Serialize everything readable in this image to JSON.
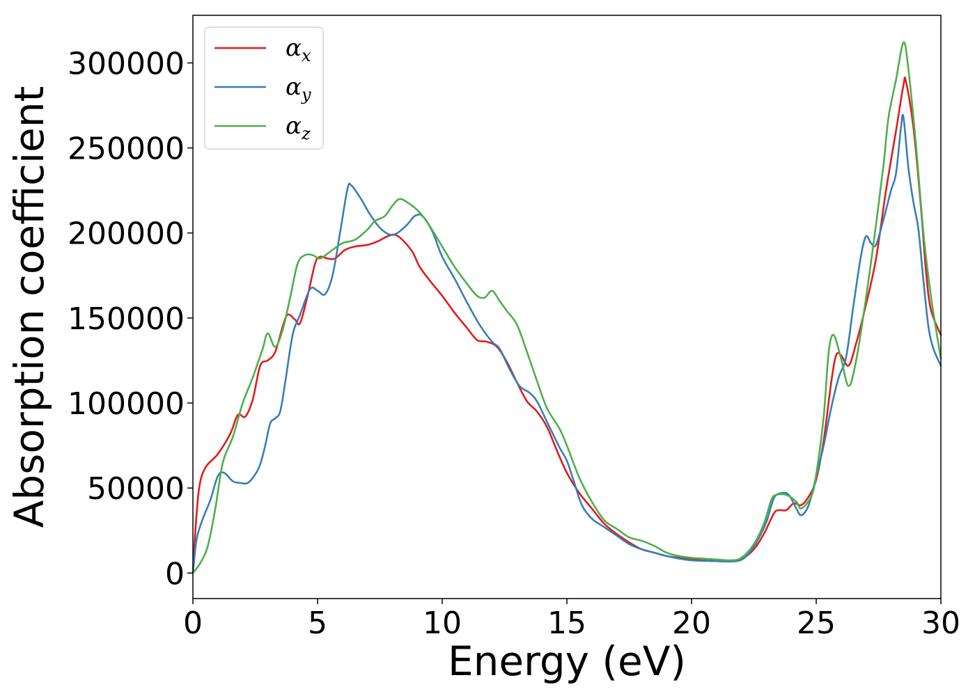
{
  "chart_data": {
    "type": "line",
    "title": "",
    "xlabel": "Energy (eV)",
    "ylabel": "Absorption coefficient",
    "xlim": [
      0,
      30
    ],
    "ylim": [
      -15000,
      328000
    ],
    "xticks": [
      0,
      5,
      10,
      15,
      20,
      25,
      30
    ],
    "yticks": [
      0,
      50000,
      100000,
      150000,
      200000,
      250000,
      300000
    ],
    "grid": false,
    "legend_position": "top-left",
    "series": [
      {
        "name": "α_x",
        "symbol": "α",
        "subscript": "x",
        "color": "#e41a1c",
        "points": [
          [
            0,
            0
          ],
          [
            0.1,
            25000
          ],
          [
            0.25,
            50000
          ],
          [
            0.5,
            62000
          ],
          [
            1.0,
            70000
          ],
          [
            1.5,
            82000
          ],
          [
            1.8,
            93000
          ],
          [
            2.1,
            92000
          ],
          [
            2.4,
            102000
          ],
          [
            2.7,
            122000
          ],
          [
            3.0,
            125000
          ],
          [
            3.3,
            130000
          ],
          [
            3.6,
            145000
          ],
          [
            3.8,
            152000
          ],
          [
            4.1,
            149000
          ],
          [
            4.3,
            147000
          ],
          [
            4.6,
            163000
          ],
          [
            4.9,
            182000
          ],
          [
            5.1,
            186000
          ],
          [
            5.4,
            185000
          ],
          [
            5.7,
            185000
          ],
          [
            6.1,
            190000
          ],
          [
            6.5,
            192000
          ],
          [
            7.0,
            193000
          ],
          [
            7.4,
            195000
          ],
          [
            7.8,
            198000
          ],
          [
            8.1,
            199000
          ],
          [
            8.4,
            196000
          ],
          [
            8.8,
            189000
          ],
          [
            9.1,
            180000
          ],
          [
            9.5,
            172000
          ],
          [
            10.0,
            163000
          ],
          [
            10.5,
            153000
          ],
          [
            11.0,
            144000
          ],
          [
            11.4,
            137000
          ],
          [
            11.8,
            136000
          ],
          [
            12.2,
            133000
          ],
          [
            12.6,
            124000
          ],
          [
            13.0,
            112000
          ],
          [
            13.4,
            101000
          ],
          [
            13.8,
            95000
          ],
          [
            14.2,
            86000
          ],
          [
            14.6,
            72000
          ],
          [
            15.0,
            59000
          ],
          [
            15.5,
            47000
          ],
          [
            16.0,
            38000
          ],
          [
            16.5,
            29000
          ],
          [
            17.0,
            23000
          ],
          [
            17.5,
            18000
          ],
          [
            18.0,
            14000
          ],
          [
            18.5,
            12000
          ],
          [
            19.0,
            10000
          ],
          [
            19.5,
            9000
          ],
          [
            20.0,
            8000
          ],
          [
            21.0,
            7000
          ],
          [
            21.6,
            7000
          ],
          [
            22.0,
            8000
          ],
          [
            22.5,
            14000
          ],
          [
            22.9,
            23000
          ],
          [
            23.3,
            35000
          ],
          [
            23.5,
            37000
          ],
          [
            23.8,
            37000
          ],
          [
            24.1,
            41000
          ],
          [
            24.4,
            40000
          ],
          [
            24.7,
            45000
          ],
          [
            25.0,
            55000
          ],
          [
            25.3,
            78000
          ],
          [
            25.6,
            112000
          ],
          [
            25.8,
            128000
          ],
          [
            26.0,
            128000
          ],
          [
            26.3,
            122000
          ],
          [
            26.6,
            135000
          ],
          [
            27.0,
            158000
          ],
          [
            27.4,
            185000
          ],
          [
            27.8,
            225000
          ],
          [
            28.2,
            260000
          ],
          [
            28.5,
            287000
          ],
          [
            28.6,
            289000
          ],
          [
            28.9,
            262000
          ],
          [
            29.2,
            215000
          ],
          [
            29.4,
            178000
          ],
          [
            29.6,
            155000
          ],
          [
            30.0,
            140000
          ]
        ]
      },
      {
        "name": "α_y",
        "symbol": "α",
        "subscript": "y",
        "color": "#377eb8",
        "points": [
          [
            0,
            0
          ],
          [
            0.15,
            20000
          ],
          [
            0.4,
            32000
          ],
          [
            0.7,
            43000
          ],
          [
            1.0,
            57000
          ],
          [
            1.25,
            59000
          ],
          [
            1.6,
            54000
          ],
          [
            1.9,
            53000
          ],
          [
            2.2,
            53000
          ],
          [
            2.5,
            58000
          ],
          [
            2.7,
            64000
          ],
          [
            2.9,
            75000
          ],
          [
            3.1,
            88000
          ],
          [
            3.3,
            91000
          ],
          [
            3.5,
            95000
          ],
          [
            3.7,
            112000
          ],
          [
            4.0,
            140000
          ],
          [
            4.3,
            152000
          ],
          [
            4.7,
            167000
          ],
          [
            5.0,
            166000
          ],
          [
            5.3,
            164000
          ],
          [
            5.6,
            175000
          ],
          [
            5.9,
            200000
          ],
          [
            6.2,
            226000
          ],
          [
            6.35,
            228000
          ],
          [
            6.7,
            221000
          ],
          [
            7.1,
            211000
          ],
          [
            7.5,
            203000
          ],
          [
            7.9,
            199000
          ],
          [
            8.2,
            200000
          ],
          [
            8.6,
            205000
          ],
          [
            8.9,
            210000
          ],
          [
            9.2,
            210000
          ],
          [
            9.6,
            201000
          ],
          [
            10.0,
            186000
          ],
          [
            10.5,
            173000
          ],
          [
            11.0,
            159000
          ],
          [
            11.5,
            146000
          ],
          [
            12.0,
            136000
          ],
          [
            12.3,
            132000
          ],
          [
            12.7,
            120000
          ],
          [
            13.1,
            110000
          ],
          [
            13.5,
            106000
          ],
          [
            13.8,
            101000
          ],
          [
            14.2,
            89000
          ],
          [
            14.7,
            74000
          ],
          [
            15.0,
            66000
          ],
          [
            15.3,
            53000
          ],
          [
            15.6,
            40000
          ],
          [
            16.0,
            32000
          ],
          [
            16.5,
            27000
          ],
          [
            17.0,
            22000
          ],
          [
            17.5,
            17000
          ],
          [
            18.0,
            14000
          ],
          [
            18.5,
            12000
          ],
          [
            19.0,
            10000
          ],
          [
            19.5,
            8500
          ],
          [
            20.0,
            7500
          ],
          [
            21.0,
            7000
          ],
          [
            21.8,
            7000
          ],
          [
            22.2,
            10000
          ],
          [
            22.6,
            18000
          ],
          [
            23.0,
            30000
          ],
          [
            23.3,
            44000
          ],
          [
            23.6,
            47000
          ],
          [
            23.9,
            46000
          ],
          [
            24.2,
            38000
          ],
          [
            24.4,
            34000
          ],
          [
            24.7,
            40000
          ],
          [
            25.0,
            57000
          ],
          [
            25.3,
            75000
          ],
          [
            25.6,
            97000
          ],
          [
            25.9,
            115000
          ],
          [
            26.2,
            127000
          ],
          [
            26.5,
            158000
          ],
          [
            26.8,
            187000
          ],
          [
            27.0,
            198000
          ],
          [
            27.2,
            194000
          ],
          [
            27.4,
            193000
          ],
          [
            27.7,
            208000
          ],
          [
            28.0,
            225000
          ],
          [
            28.2,
            235000
          ],
          [
            28.4,
            262000
          ],
          [
            28.5,
            268000
          ],
          [
            28.7,
            238000
          ],
          [
            28.9,
            218000
          ],
          [
            29.1,
            202000
          ],
          [
            29.3,
            172000
          ],
          [
            29.5,
            145000
          ],
          [
            29.7,
            132000
          ],
          [
            30.0,
            122000
          ]
        ]
      },
      {
        "name": "α_z",
        "symbol": "α",
        "subscript": "z",
        "color": "#4daf4a",
        "points": [
          [
            0,
            0
          ],
          [
            0.3,
            6000
          ],
          [
            0.6,
            16000
          ],
          [
            0.9,
            38000
          ],
          [
            1.2,
            65000
          ],
          [
            1.6,
            80000
          ],
          [
            2.0,
            100000
          ],
          [
            2.4,
            115000
          ],
          [
            2.8,
            132000
          ],
          [
            3.0,
            141000
          ],
          [
            3.3,
            133000
          ],
          [
            3.6,
            143000
          ],
          [
            3.9,
            162000
          ],
          [
            4.2,
            182000
          ],
          [
            4.5,
            187000
          ],
          [
            4.8,
            187000
          ],
          [
            5.1,
            185000
          ],
          [
            5.5,
            189000
          ],
          [
            6.0,
            194000
          ],
          [
            6.5,
            196000
          ],
          [
            7.0,
            202000
          ],
          [
            7.3,
            207000
          ],
          [
            7.7,
            210000
          ],
          [
            8.0,
            216000
          ],
          [
            8.3,
            220000
          ],
          [
            8.7,
            217000
          ],
          [
            9.1,
            212000
          ],
          [
            9.5,
            204000
          ],
          [
            10.0,
            192000
          ],
          [
            10.5,
            180000
          ],
          [
            11.0,
            170000
          ],
          [
            11.4,
            163000
          ],
          [
            11.7,
            162000
          ],
          [
            12.0,
            166000
          ],
          [
            12.3,
            160000
          ],
          [
            12.6,
            154000
          ],
          [
            13.0,
            146000
          ],
          [
            13.4,
            130000
          ],
          [
            13.8,
            113000
          ],
          [
            14.2,
            97000
          ],
          [
            14.7,
            85000
          ],
          [
            15.0,
            75000
          ],
          [
            15.5,
            56000
          ],
          [
            16.0,
            42000
          ],
          [
            16.5,
            31000
          ],
          [
            17.0,
            26000
          ],
          [
            17.5,
            21000
          ],
          [
            18.0,
            19000
          ],
          [
            18.5,
            16000
          ],
          [
            19.0,
            12000
          ],
          [
            19.5,
            10000
          ],
          [
            20.0,
            9000
          ],
          [
            21.0,
            8000
          ],
          [
            21.6,
            7500
          ],
          [
            22.0,
            9000
          ],
          [
            22.5,
            17000
          ],
          [
            22.9,
            29000
          ],
          [
            23.2,
            43000
          ],
          [
            23.4,
            46000
          ],
          [
            23.8,
            46000
          ],
          [
            24.2,
            42000
          ],
          [
            24.4,
            38000
          ],
          [
            24.8,
            45000
          ],
          [
            25.0,
            58000
          ],
          [
            25.3,
            92000
          ],
          [
            25.5,
            130000
          ],
          [
            25.7,
            140000
          ],
          [
            26.0,
            126000
          ],
          [
            26.3,
            110000
          ],
          [
            26.6,
            125000
          ],
          [
            27.0,
            162000
          ],
          [
            27.4,
            205000
          ],
          [
            27.7,
            240000
          ],
          [
            27.9,
            268000
          ],
          [
            28.2,
            290000
          ],
          [
            28.5,
            312000
          ],
          [
            28.7,
            296000
          ],
          [
            29.0,
            252000
          ],
          [
            29.3,
            200000
          ],
          [
            29.6,
            163000
          ],
          [
            30.0,
            126000
          ]
        ]
      }
    ]
  }
}
